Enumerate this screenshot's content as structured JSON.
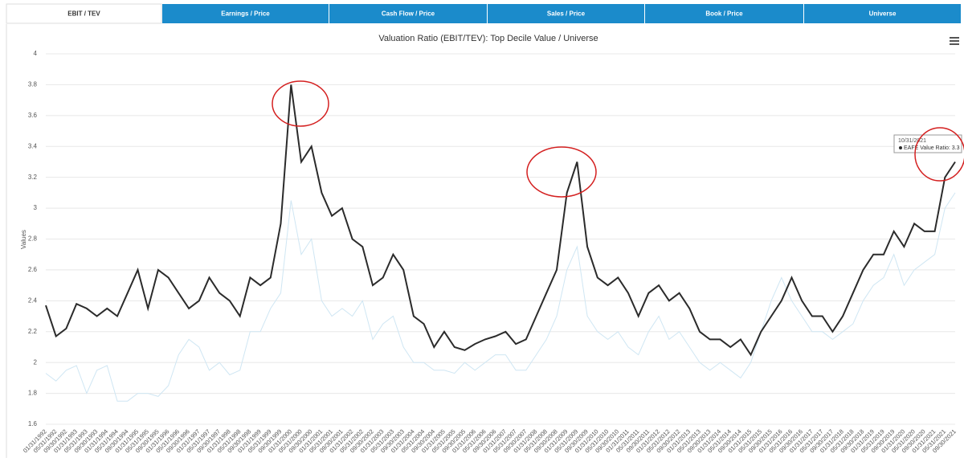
{
  "tabs": [
    "EBIT / TEV",
    "Earnings / Price",
    "Cash Flow / Price",
    "Sales / Price",
    "Book / Price",
    "Universe"
  ],
  "chart_data": {
    "type": "line",
    "title": "Valuation Ratio (EBIT/TEV): Top Decile Value / Universe",
    "y_label": "Values",
    "categories": [
      "01/31/1992",
      "05/31/1992",
      "09/30/1992",
      "01/31/1993",
      "05/31/1993",
      "09/30/1993",
      "01/31/1994",
      "05/31/1994",
      "09/30/1994",
      "01/31/1995",
      "05/31/1995",
      "09/30/1995",
      "01/31/1996",
      "05/31/1996",
      "09/30/1996",
      "01/31/1997",
      "05/31/1997",
      "09/30/1997",
      "01/31/1998",
      "05/31/1998",
      "09/30/1998",
      "01/31/1999",
      "05/31/1999",
      "09/30/1999",
      "01/31/2000",
      "05/31/2000",
      "09/30/2000",
      "01/31/2001",
      "05/31/2001",
      "09/30/2001",
      "01/31/2002",
      "05/31/2002",
      "09/30/2002",
      "01/31/2003",
      "05/31/2003",
      "09/30/2003",
      "01/31/2004",
      "05/31/2004",
      "09/30/2004",
      "01/31/2005",
      "05/31/2005",
      "09/30/2005",
      "01/31/2006",
      "05/31/2006",
      "09/30/2006",
      "01/31/2007",
      "05/31/2007",
      "09/30/2007",
      "01/31/2008",
      "05/31/2008",
      "09/30/2008",
      "01/31/2009",
      "05/31/2009",
      "09/30/2009",
      "01/31/2010",
      "05/31/2010",
      "09/30/2010",
      "01/31/2011",
      "05/31/2011",
      "09/30/2011",
      "01/31/2012",
      "05/31/2012",
      "09/30/2012",
      "01/31/2013",
      "05/31/2013",
      "09/30/2013",
      "01/31/2014",
      "05/31/2014",
      "09/30/2014",
      "01/31/2015",
      "05/31/2015",
      "09/30/2015",
      "01/31/2016",
      "05/31/2016",
      "09/30/2016",
      "01/31/2017",
      "05/31/2017",
      "09/30/2017",
      "01/31/2018",
      "05/31/2018",
      "09/30/2018",
      "01/31/2019",
      "05/31/2019",
      "09/30/2019",
      "01/31/2020",
      "05/31/2020",
      "09/30/2020",
      "01/31/2021",
      "05/31/2021",
      "09/30/2021"
    ],
    "series": [
      {
        "color": "#cfe6f3",
        "values": [
          1.93,
          1.88,
          1.95,
          1.98,
          1.8,
          1.95,
          1.98,
          1.75,
          1.75,
          1.8,
          1.8,
          1.78,
          1.85,
          2.05,
          2.15,
          2.1,
          1.95,
          2.0,
          1.92,
          1.95,
          2.2,
          2.2,
          2.35,
          2.45,
          3.05,
          2.7,
          2.8,
          2.4,
          2.3,
          2.35,
          2.3,
          2.4,
          2.15,
          2.25,
          2.3,
          2.1,
          2.0,
          2.0,
          1.95,
          1.95,
          1.93,
          2.0,
          1.95,
          2.0,
          2.05,
          2.05,
          1.95,
          1.95,
          2.05,
          2.15,
          2.3,
          2.6,
          2.75,
          2.3,
          2.2,
          2.15,
          2.2,
          2.1,
          2.05,
          2.2,
          2.3,
          2.15,
          2.2,
          2.1,
          2.0,
          1.95,
          2.0,
          1.95,
          1.9,
          2.0,
          2.2,
          2.4,
          2.55,
          2.4,
          2.3,
          2.2,
          2.2,
          2.15,
          2.2,
          2.25,
          2.4,
          2.5,
          2.55,
          2.7,
          2.5,
          2.6,
          2.65,
          2.7,
          3.0,
          3.1
        ]
      },
      {
        "name": "EAFE Value Ratio",
        "color": "#2b2b2b",
        "values": [
          2.37,
          2.17,
          2.22,
          2.38,
          2.35,
          2.3,
          2.35,
          2.3,
          2.45,
          2.6,
          2.35,
          2.6,
          2.55,
          2.45,
          2.35,
          2.4,
          2.55,
          2.45,
          2.4,
          2.3,
          2.55,
          2.5,
          2.55,
          2.9,
          3.8,
          3.3,
          3.4,
          3.1,
          2.95,
          3.0,
          2.8,
          2.75,
          2.5,
          2.55,
          2.7,
          2.6,
          2.3,
          2.25,
          2.1,
          2.2,
          2.1,
          2.08,
          2.12,
          2.15,
          2.17,
          2.2,
          2.12,
          2.15,
          2.3,
          2.45,
          2.6,
          3.1,
          3.3,
          2.75,
          2.55,
          2.5,
          2.55,
          2.45,
          2.3,
          2.45,
          2.5,
          2.4,
          2.45,
          2.35,
          2.2,
          2.15,
          2.15,
          2.1,
          2.15,
          2.05,
          2.2,
          2.3,
          2.4,
          2.55,
          2.4,
          2.3,
          2.3,
          2.2,
          2.3,
          2.45,
          2.6,
          2.7,
          2.7,
          2.85,
          2.75,
          2.9,
          2.85,
          2.85,
          3.2,
          3.3
        ]
      }
    ],
    "ylim": [
      1.6,
      4
    ],
    "yticks": [
      1.6,
      1.8,
      2,
      2.2,
      2.4,
      2.6,
      2.8,
      3,
      3.2,
      3.4,
      3.6,
      3.8,
      4
    ],
    "grid": true,
    "tooltip": {
      "date": "10/31/2021",
      "text": "EAFE Value Ratio: 3.3"
    }
  }
}
